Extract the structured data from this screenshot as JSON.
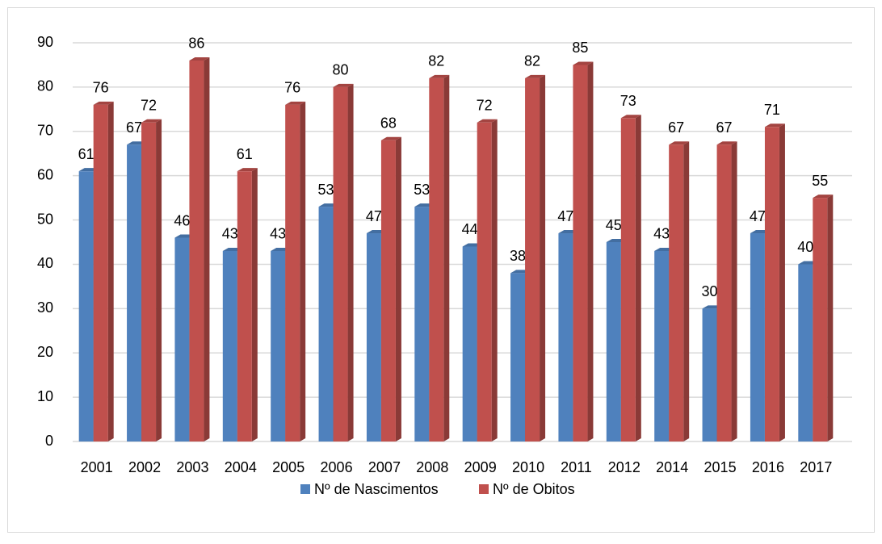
{
  "chart_data": {
    "type": "bar",
    "categories": [
      "2001",
      "2002",
      "2003",
      "2004",
      "2005",
      "2006",
      "2007",
      "2008",
      "2009",
      "2010",
      "2011",
      "2012",
      "2014",
      "2015",
      "2016",
      "2017"
    ],
    "series": [
      {
        "name": "Nº de Nascimentos",
        "color": "#4f81bd",
        "values": [
          61,
          67,
          46,
          43,
          43,
          53,
          47,
          53,
          44,
          38,
          47,
          45,
          43,
          30,
          47,
          40
        ]
      },
      {
        "name": "Nº de Obitos",
        "color": "#c0504d",
        "values": [
          76,
          72,
          86,
          61,
          76,
          80,
          68,
          82,
          72,
          82,
          85,
          73,
          67,
          67,
          71,
          55
        ]
      }
    ],
    "ylim": [
      0,
      90
    ],
    "yticks": [
      0,
      10,
      20,
      30,
      40,
      50,
      60,
      70,
      80,
      90
    ],
    "grid": true,
    "legend": "bottom"
  }
}
